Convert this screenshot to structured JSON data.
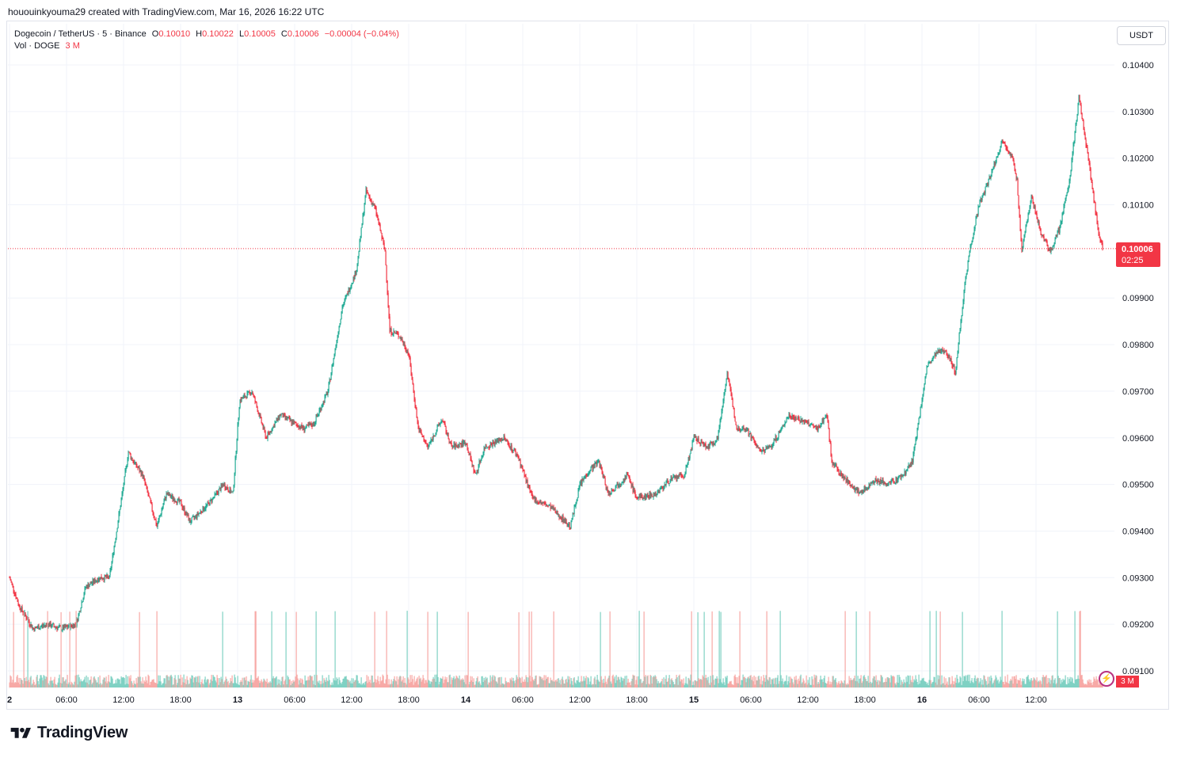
{
  "header": {
    "credit": "hououinkyouma29 created with TradingView.com, Mar 16, 2026 16:22 UTC"
  },
  "legend": {
    "symbol": "Dogecoin / TetherUS · 5 · Binance",
    "o_label": "O",
    "o_value": "0.10010",
    "h_label": "H",
    "h_value": "0.10022",
    "l_label": "L",
    "l_value": "0.10005",
    "c_label": "C",
    "c_value": "0.10006",
    "change": "−0.00004 (−0.04%)",
    "vol_label": "Vol · DOGE",
    "vol_value": "3 M"
  },
  "toolbar": {
    "currency": "USDT"
  },
  "last_price": {
    "value": "0.10006",
    "countdown": "02:25"
  },
  "volume_badge": "3 M",
  "brand": {
    "name": "TradingView"
  },
  "colors": {
    "up": "#22ab94",
    "down": "#f23645",
    "volume_up": "#7fd1c3",
    "volume_down": "#f7a9a6",
    "grid": "#f0f3fa"
  },
  "chart_data": {
    "type": "candlestick",
    "title": "Dogecoin / TetherUS · 5 · Binance",
    "y_axis": {
      "ticks": [
        "0.10400",
        "0.10300",
        "0.10200",
        "0.10100",
        "0.09900",
        "0.09800",
        "0.09700",
        "0.09600",
        "0.09500",
        "0.09400",
        "0.09300",
        "0.09200",
        "0.09100"
      ],
      "ylim": [
        0.0906,
        0.1044
      ]
    },
    "x_axis": {
      "ticks": [
        {
          "label": "2",
          "t": 0
        },
        {
          "label": "06:00",
          "t": 6
        },
        {
          "label": "12:00",
          "t": 12
        },
        {
          "label": "18:00",
          "t": 18
        },
        {
          "label": "13",
          "t": 24
        },
        {
          "label": "06:00",
          "t": 30
        },
        {
          "label": "12:00",
          "t": 36
        },
        {
          "label": "18:00",
          "t": 42
        },
        {
          "label": "14",
          "t": 48
        },
        {
          "label": "06:00",
          "t": 54
        },
        {
          "label": "12:00",
          "t": 60
        },
        {
          "label": "18:00",
          "t": 66
        },
        {
          "label": "15",
          "t": 72
        },
        {
          "label": "06:00",
          "t": 78
        },
        {
          "label": "12:00",
          "t": 84
        },
        {
          "label": "18:00",
          "t": 90
        },
        {
          "label": "16",
          "t": 96
        },
        {
          "label": "06:00",
          "t": 102
        },
        {
          "label": "12:00",
          "t": 108
        }
      ],
      "xlim": [
        0,
        112
      ]
    },
    "price_path": [
      [
        0,
        0.093
      ],
      [
        1,
        0.0924
      ],
      [
        2.5,
        0.0919
      ],
      [
        4,
        0.092
      ],
      [
        5.5,
        0.0919
      ],
      [
        7,
        0.092
      ],
      [
        8,
        0.0928
      ],
      [
        9.5,
        0.093
      ],
      [
        10.5,
        0.093
      ],
      [
        12,
        0.095
      ],
      [
        12.5,
        0.0957
      ],
      [
        13,
        0.0955
      ],
      [
        14,
        0.0952
      ],
      [
        15.5,
        0.0941
      ],
      [
        16.5,
        0.0948
      ],
      [
        18,
        0.0946
      ],
      [
        19,
        0.0942
      ],
      [
        21,
        0.0946
      ],
      [
        22.5,
        0.095
      ],
      [
        23.5,
        0.0948
      ],
      [
        24.2,
        0.0968
      ],
      [
        25.5,
        0.097
      ],
      [
        27,
        0.096
      ],
      [
        28.5,
        0.0965
      ],
      [
        30,
        0.0963
      ],
      [
        31,
        0.0962
      ],
      [
        32,
        0.0963
      ],
      [
        33.5,
        0.097
      ],
      [
        35,
        0.0988
      ],
      [
        36.5,
        0.0996
      ],
      [
        37.5,
        0.1013
      ],
      [
        38.5,
        0.1009
      ],
      [
        39.5,
        0.1
      ],
      [
        40,
        0.0983
      ],
      [
        41,
        0.0982
      ],
      [
        42,
        0.0978
      ],
      [
        43,
        0.0962
      ],
      [
        44,
        0.0958
      ],
      [
        45.5,
        0.0964
      ],
      [
        46.5,
        0.0958
      ],
      [
        48,
        0.0959
      ],
      [
        49,
        0.0952
      ],
      [
        50,
        0.0958
      ],
      [
        52,
        0.096
      ],
      [
        53.5,
        0.0956
      ],
      [
        55,
        0.0947
      ],
      [
        57,
        0.0945
      ],
      [
        58,
        0.0943
      ],
      [
        59,
        0.0941
      ],
      [
        60,
        0.095
      ],
      [
        61,
        0.0953
      ],
      [
        62,
        0.0955
      ],
      [
        63,
        0.0948
      ],
      [
        65,
        0.0952
      ],
      [
        66,
        0.0947
      ],
      [
        68,
        0.0948
      ],
      [
        69.5,
        0.0951
      ],
      [
        71,
        0.0952
      ],
      [
        72,
        0.096
      ],
      [
        73.5,
        0.0958
      ],
      [
        74.5,
        0.096
      ],
      [
        75.5,
        0.0974
      ],
      [
        76.5,
        0.0962
      ],
      [
        77.5,
        0.0962
      ],
      [
        79,
        0.0957
      ],
      [
        80,
        0.0958
      ],
      [
        81,
        0.0961
      ],
      [
        82,
        0.0965
      ],
      [
        84,
        0.0963
      ],
      [
        85,
        0.0962
      ],
      [
        86,
        0.0965
      ],
      [
        86.5,
        0.0955
      ],
      [
        87.5,
        0.0952
      ],
      [
        88.5,
        0.095
      ],
      [
        89.5,
        0.0948
      ],
      [
        91,
        0.0951
      ],
      [
        92.5,
        0.095
      ],
      [
        94,
        0.0952
      ],
      [
        95,
        0.0955
      ],
      [
        96.5,
        0.0975
      ],
      [
        97.5,
        0.0978
      ],
      [
        98.5,
        0.0979
      ],
      [
        99.5,
        0.0974
      ],
      [
        100.5,
        0.0993
      ],
      [
        101,
        0.1
      ],
      [
        102,
        0.101
      ],
      [
        103,
        0.1015
      ],
      [
        104.5,
        0.1024
      ],
      [
        105.5,
        0.102
      ],
      [
        106,
        0.1015
      ],
      [
        106.5,
        0.1
      ],
      [
        107.5,
        0.1012
      ],
      [
        108.5,
        0.1004
      ],
      [
        109.5,
        0.1
      ],
      [
        110.5,
        0.1005
      ],
      [
        111.5,
        0.1015
      ],
      [
        112.5,
        0.1033
      ],
      [
        113.5,
        0.102
      ],
      [
        114.5,
        0.1005
      ],
      [
        115,
        0.10006
      ]
    ],
    "last_close": 0.10006
  }
}
